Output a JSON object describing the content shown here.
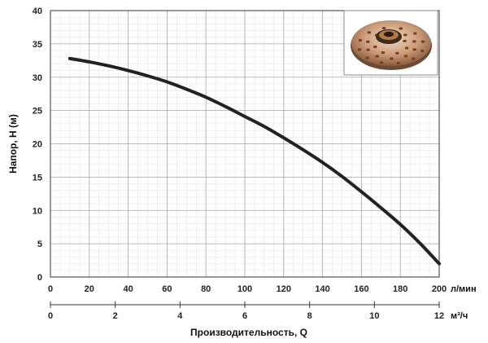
{
  "chart_data": {
    "type": "line",
    "ylabel": "Напор, H (м)",
    "xlabel": "Производительность, Q",
    "x_primary_unit": "л/мин",
    "x_secondary_unit": "м³/ч",
    "xlim": [
      0,
      200
    ],
    "ylim": [
      0,
      40
    ],
    "x_ticks": [
      "0",
      "20",
      "40",
      "60",
      "80",
      "100",
      "120",
      "140",
      "160",
      "180",
      "200"
    ],
    "y_ticks": [
      "0",
      "5",
      "10",
      "15",
      "20",
      "25",
      "30",
      "35",
      "40"
    ],
    "x_secondary_ticks": [
      "0",
      "2",
      "4",
      "6",
      "8",
      "10",
      "12"
    ],
    "x_secondary_lim": [
      0,
      12
    ],
    "grid": true,
    "series": [
      {
        "color": "#222222",
        "x": [
          10,
          20,
          30,
          40,
          50,
          60,
          70,
          80,
          90,
          100,
          110,
          120,
          130,
          140,
          150,
          160,
          170,
          180,
          190,
          200
        ],
        "y": [
          32.8,
          32.3,
          31.7,
          31.0,
          30.2,
          29.3,
          28.2,
          27.0,
          25.6,
          24.1,
          22.6,
          20.9,
          19.1,
          17.2,
          15.1,
          12.8,
          10.4,
          7.9,
          5.1,
          2.0
        ]
      }
    ],
    "inset": "pump-impeller-photo"
  }
}
